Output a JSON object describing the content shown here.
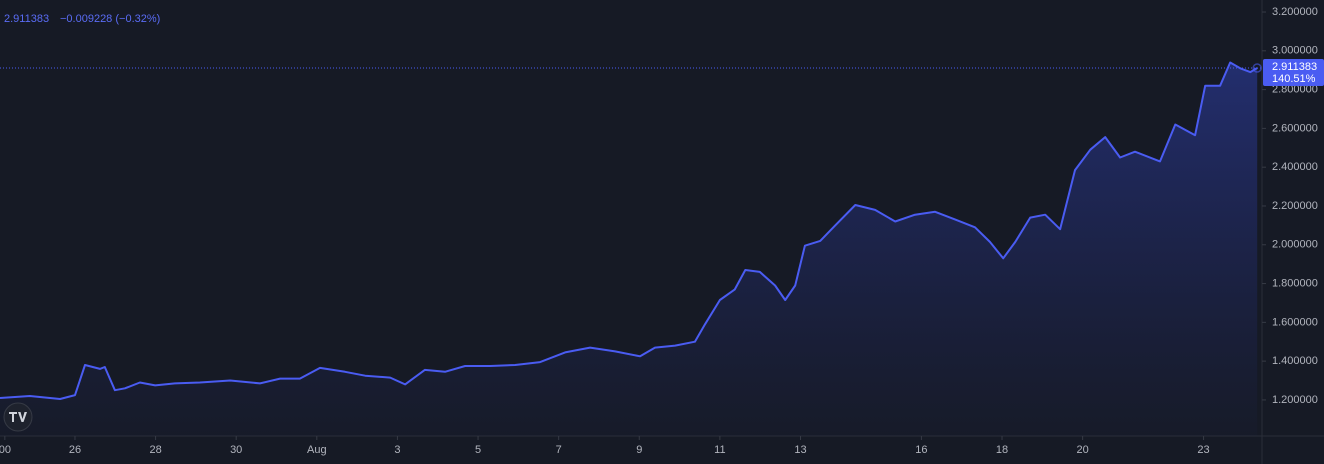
{
  "chart_data": {
    "type": "area",
    "header": [
      "2.911383",
      "−0.009228 (−0.32%)"
    ],
    "x": [
      24.14,
      24.88,
      25.63,
      26.0,
      26.25,
      26.62,
      26.74,
      26.99,
      27.24,
      27.61,
      27.99,
      28.48,
      29.1,
      29.85,
      30.59,
      31.09,
      31.58,
      32.08,
      32.7,
      33.2,
      33.82,
      34.19,
      34.68,
      35.18,
      35.68,
      36.3,
      36.92,
      37.54,
      38.16,
      38.78,
      39.4,
      40.02,
      40.39,
      40.89,
      41.38,
      41.63,
      42.0,
      42.37,
      42.63,
      42.99,
      43.37,
      43.62,
      43.87,
      44.11,
      44.49,
      44.86,
      45.36,
      45.85,
      46.35,
      46.84,
      47.34,
      47.84,
      48.33,
      48.7,
      49.03,
      49.33,
      49.7,
      50.07,
      50.44,
      50.81,
      51.19,
      51.56,
      51.93,
      52.3,
      52.92,
      53.3,
      53.79,
      54.04,
      54.41,
      54.66,
      54.91,
      55.16,
      55.33
    ],
    "series": [
      {
        "color": "#4a5cf2",
        "values": [
          1.21,
          1.22,
          1.205,
          1.225,
          1.38,
          1.36,
          1.37,
          1.25,
          1.26,
          1.29,
          1.275,
          1.285,
          1.29,
          1.3,
          1.285,
          1.31,
          1.31,
          1.365,
          1.345,
          1.325,
          1.315,
          1.28,
          1.355,
          1.345,
          1.375,
          1.375,
          1.38,
          1.395,
          1.445,
          1.47,
          1.45,
          1.425,
          1.47,
          1.48,
          1.5,
          1.59,
          1.715,
          1.77,
          1.87,
          1.86,
          1.79,
          1.715,
          1.79,
          1.995,
          2.02,
          2.1,
          2.205,
          2.18,
          2.12,
          2.155,
          2.17,
          2.13,
          2.09,
          2.015,
          1.93,
          2.015,
          2.14,
          2.155,
          2.08,
          2.385,
          2.49,
          2.555,
          2.45,
          2.48,
          2.43,
          2.62,
          2.565,
          2.82,
          2.82,
          2.94,
          2.91,
          2.89,
          2.911383
        ]
      }
    ],
    "xlim": [
      24.14,
      55.45
    ],
    "xticks": [
      {
        "value": 24.26,
        "label": "00"
      },
      26,
      28,
      30,
      {
        "value": 32,
        "label": "Aug"
      },
      {
        "value": 34,
        "label": "3"
      },
      {
        "value": 36,
        "label": "5"
      },
      {
        "value": 38,
        "label": "7"
      },
      {
        "value": 40,
        "label": "9"
      },
      {
        "value": 42,
        "label": "11"
      },
      {
        "value": 44,
        "label": "13"
      },
      {
        "value": 47,
        "label": "16"
      },
      {
        "value": 49,
        "label": "18"
      },
      {
        "value": 51,
        "label": "20"
      },
      {
        "value": 54,
        "label": "23"
      }
    ],
    "ylim": [
      1.014,
      3.262
    ],
    "yticks": [
      {
        "value": 1.2,
        "label": "1.200000"
      },
      {
        "value": 1.4,
        "label": "1.400000"
      },
      {
        "value": 1.6,
        "label": "1.600000"
      },
      {
        "value": 1.8,
        "label": "1.800000"
      },
      {
        "value": 2.0,
        "label": "2.000000"
      },
      {
        "value": 2.2,
        "label": "2.200000"
      },
      {
        "value": 2.4,
        "label": "2.400000"
      },
      {
        "value": 2.6,
        "label": "2.600000"
      },
      {
        "value": 2.8,
        "label": "2.800000"
      },
      {
        "value": 3.0,
        "label": "3.000000"
      },
      {
        "value": 3.2,
        "label": "3.200000"
      }
    ],
    "price_line": {
      "value": 2.911383,
      "label": "2.911383",
      "percent": "140.51%"
    },
    "grid": false
  }
}
